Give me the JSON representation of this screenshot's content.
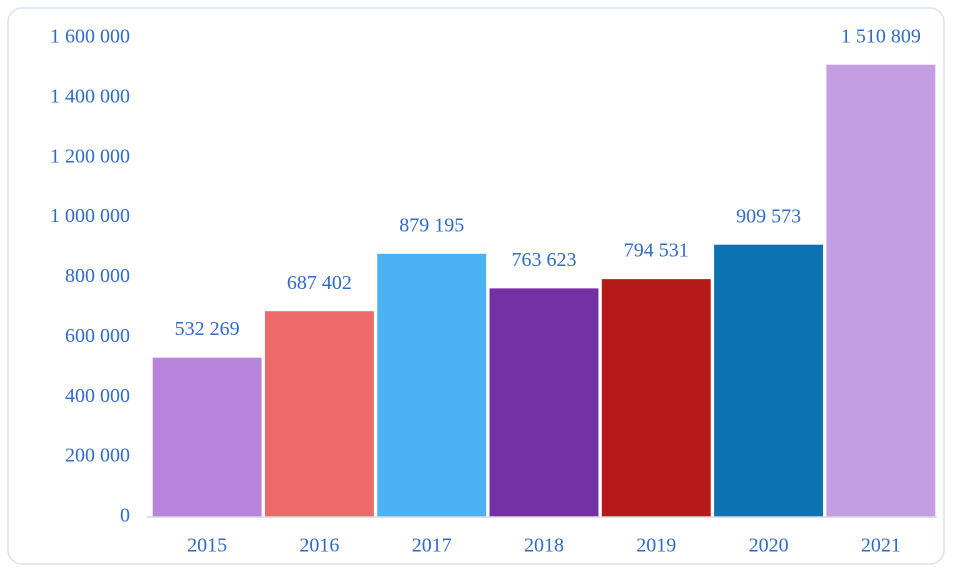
{
  "chart_data": {
    "type": "bar",
    "categories": [
      "2015",
      "2016",
      "2017",
      "2018",
      "2019",
      "2020",
      "2021"
    ],
    "values": [
      532269,
      687402,
      879195,
      763623,
      794531,
      909573,
      1510809
    ],
    "value_labels": [
      "532 269",
      "687 402",
      "879 195",
      "763 623",
      "794 531",
      "909 573",
      "1 510 809"
    ],
    "colors": [
      "#b685db",
      "#ec6b6a",
      "#4ab2f2",
      "#7431a3",
      "#b51a18",
      "#0d72b0",
      "#c39ee3"
    ],
    "ylim": [
      0,
      1600000
    ],
    "yticks": [
      0,
      {
        "value": 200000,
        "label": "200 000"
      },
      {
        "value": 400000,
        "label": "400 000"
      },
      {
        "value": 600000,
        "label": "600 000"
      },
      {
        "value": 800000,
        "label": "800 000"
      },
      {
        "value": 1000000,
        "label": "1 000 000"
      },
      {
        "value": 1200000,
        "label": "1 200 000"
      },
      {
        "value": 1400000,
        "label": "1 400 000"
      },
      {
        "value": 1600000,
        "label": "1 600 000"
      }
    ],
    "grid": false
  }
}
